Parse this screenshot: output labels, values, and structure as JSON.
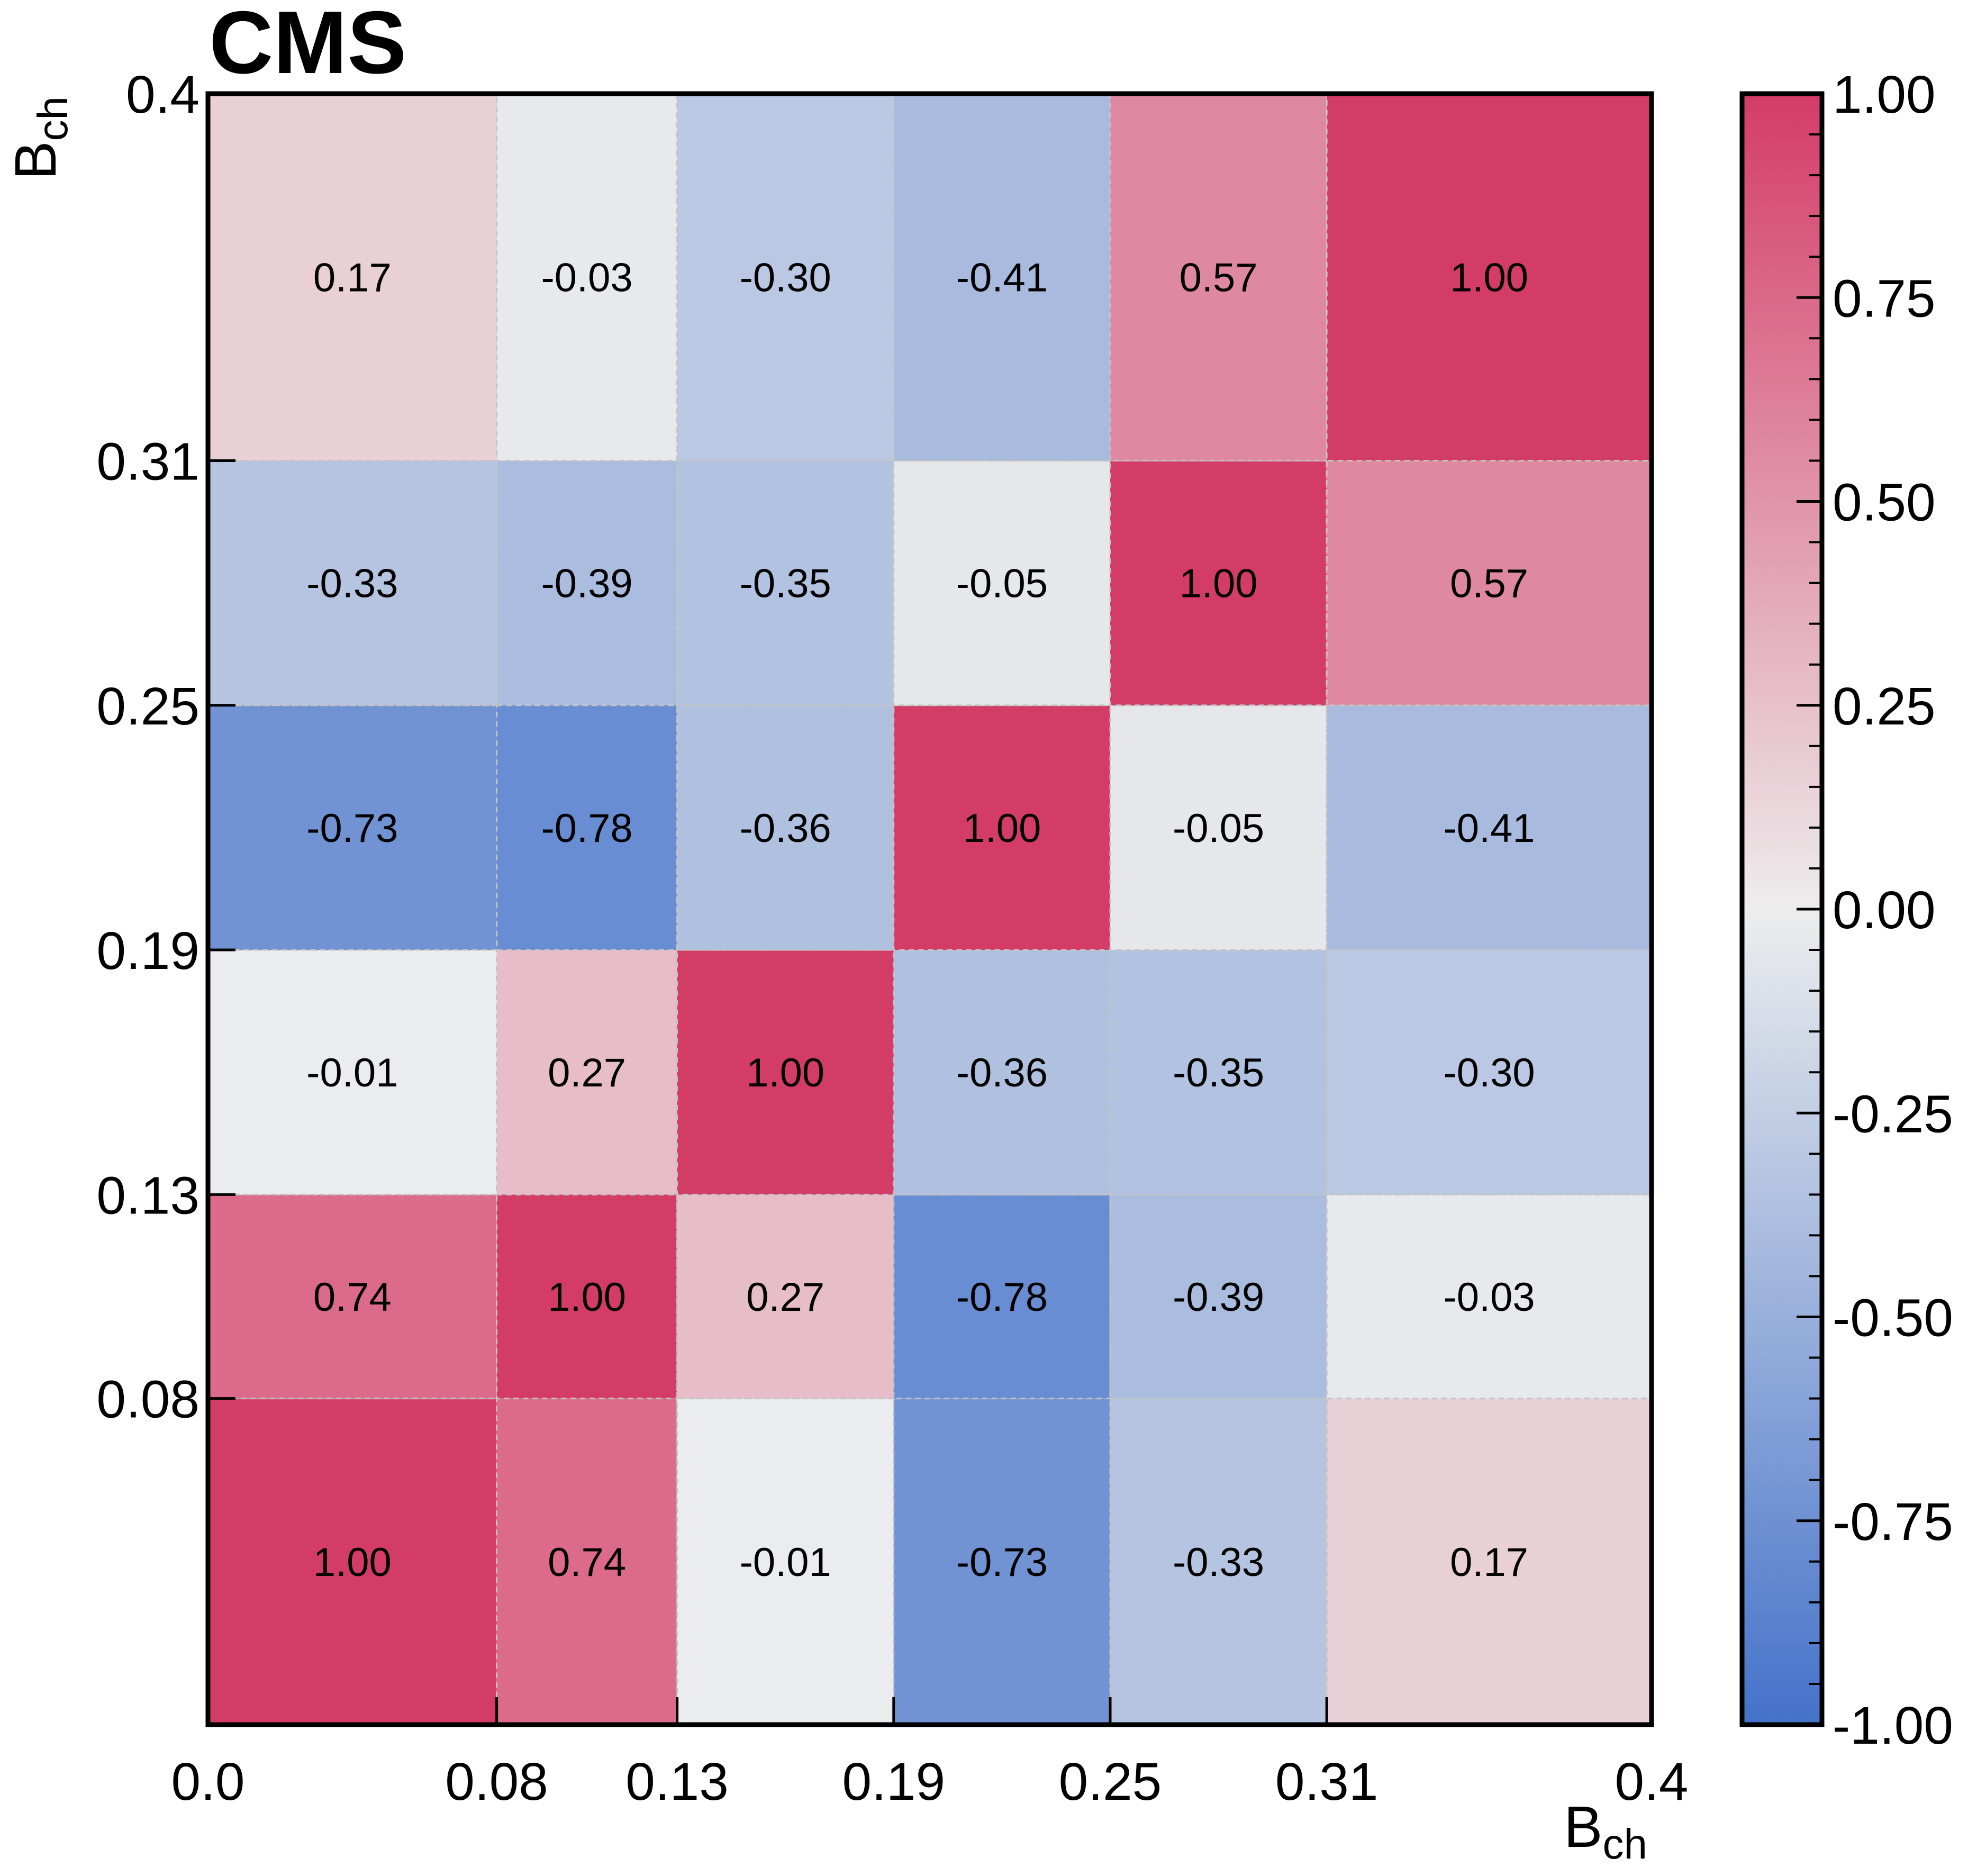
{
  "header": {
    "experiment": "CMS"
  },
  "chart_data": {
    "type": "heatmap",
    "title": "",
    "xlabel": {
      "main": "B",
      "sub": "ch"
    },
    "ylabel": {
      "main": "B",
      "sub": "ch"
    },
    "bin_edges": [
      0.0,
      0.08,
      0.13,
      0.19,
      0.25,
      0.31,
      0.4
    ],
    "x_tick_labels": [
      "0.0",
      "0.08",
      "0.13",
      "0.19",
      "0.25",
      "0.31",
      "0.4"
    ],
    "y_tick_labels": [
      "0.08",
      "0.13",
      "0.19",
      "0.25",
      "0.31",
      "0.4"
    ],
    "values": [
      [
        1.0,
        0.74,
        -0.01,
        -0.73,
        -0.33,
        0.17
      ],
      [
        0.74,
        1.0,
        0.27,
        -0.78,
        -0.39,
        -0.03
      ],
      [
        -0.01,
        0.27,
        1.0,
        -0.36,
        -0.35,
        -0.3
      ],
      [
        -0.73,
        -0.78,
        -0.36,
        1.0,
        -0.05,
        -0.41
      ],
      [
        -0.33,
        -0.39,
        -0.35,
        -0.05,
        1.0,
        0.57
      ],
      [
        0.17,
        -0.03,
        -0.3,
        -0.41,
        0.57,
        1.0
      ]
    ],
    "value_labels": [
      [
        "1.00",
        "0.74",
        "-0.01",
        "-0.73",
        "-0.33",
        "0.17"
      ],
      [
        "0.74",
        "1.00",
        "0.27",
        "-0.78",
        "-0.39",
        "-0.03"
      ],
      [
        "-0.01",
        "0.27",
        "1.00",
        "-0.36",
        "-0.35",
        "-0.30"
      ],
      [
        "-0.73",
        "-0.78",
        "-0.36",
        "1.00",
        "-0.05",
        "-0.41"
      ],
      [
        "-0.33",
        "-0.39",
        "-0.35",
        "-0.05",
        "1.00",
        "0.57"
      ],
      [
        "0.17",
        "-0.03",
        "-0.30",
        "-0.41",
        "0.57",
        "1.00"
      ]
    ],
    "colorbar": {
      "range": [
        -1.0,
        1.0
      ],
      "tick_values": [
        -1.0,
        -0.75,
        -0.5,
        -0.25,
        0.0,
        0.25,
        0.5,
        0.75,
        1.0
      ],
      "tick_labels": [
        "-1.00",
        "-0.75",
        "-0.50",
        "-0.25",
        "0.00",
        "0.25",
        "0.50",
        "0.75",
        "1.00"
      ],
      "colors": {
        "min": "#4472ca",
        "mid": "#ededed",
        "max": "#d43c68"
      }
    },
    "grid": "dashed cell borders",
    "colorbar_placement": "right"
  }
}
